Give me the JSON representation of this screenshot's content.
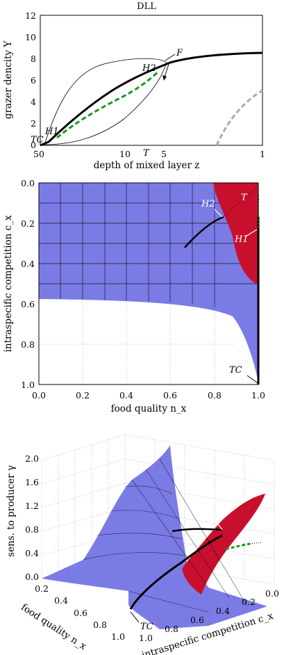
{
  "chart_data": [
    {
      "type": "line",
      "title": "DLL",
      "xlabel": "depth of mixed layer z",
      "ylabel": "grazer dencity Y",
      "xscale": "log-reversed",
      "xlim": [
        50,
        1
      ],
      "ylim": [
        0,
        12
      ],
      "x_ticks": [
        "50",
        "10",
        "5",
        "1"
      ],
      "y_ticks": [
        "0",
        "2",
        "4",
        "6",
        "8",
        "10",
        "12"
      ],
      "annotations": [
        "TC",
        "H1",
        "H2",
        "T",
        "F"
      ],
      "series": [
        {
          "style": "solid-black",
          "x": [
            50,
            45,
            35,
            25,
            15,
            10,
            7,
            5,
            3,
            2,
            1
          ],
          "y": [
            0,
            0.35,
            1.2,
            2.3,
            3.8,
            5.0,
            6.2,
            6.8,
            7.6,
            8.1,
            8.4
          ]
        },
        {
          "style": "dashed-green",
          "x": [
            40,
            30,
            20,
            15,
            12,
            10,
            8
          ],
          "y": [
            0.5,
            1.5,
            2.7,
            3.6,
            4.5,
            5.2,
            6.3
          ]
        },
        {
          "style": "dashed-grey",
          "x": [
            2.2,
            1.8,
            1.4,
            1.0
          ],
          "y": [
            0,
            2.0,
            3.8,
            4.9
          ]
        }
      ]
    },
    {
      "type": "heatmap",
      "xlabel": "food quality n_x",
      "ylabel": "intraspecific competition c_x",
      "xlim": [
        0,
        1
      ],
      "ylim": [
        1,
        0
      ],
      "x_ticks": [
        "0.0",
        "0.2",
        "0.4",
        "0.6",
        "0.8",
        "1.0"
      ],
      "y_ticks": [
        "0.0",
        "0.2",
        "0.4",
        "0.6",
        "0.8",
        "1.0"
      ],
      "regions": [
        {
          "color": "#7b7be6",
          "boundary": [
            [
              0,
              0.57
            ],
            [
              0.3,
              0.58
            ],
            [
              0.6,
              0.6
            ],
            [
              0.8,
              0.64
            ],
            [
              0.9,
              0.7
            ],
            [
              0.96,
              0.8
            ],
            [
              0.99,
              0.9
            ],
            [
              1.0,
              0.97
            ]
          ]
        },
        {
          "color": "#c8102e",
          "boundary": [
            [
              0.8,
              0
            ],
            [
              0.82,
              0.1
            ],
            [
              0.85,
              0.2
            ],
            [
              0.9,
              0.3
            ],
            [
              0.93,
              0.4
            ],
            [
              1.0,
              0.5
            ]
          ]
        }
      ],
      "annotations": [
        "H2",
        "T",
        "H1",
        "TC"
      ]
    },
    {
      "type": "surface",
      "zlabel": "sens. to producer γ",
      "xlabel": "food quality n_x",
      "ylabel": "intraspecific competition c_x",
      "z_ticks": [
        "0.0",
        "0.4",
        "0.8",
        "1.2",
        "1.6",
        "2.0"
      ],
      "x_ticks": [
        "0.2",
        "0.4",
        "0.6",
        "0.8",
        "1.0"
      ],
      "y_ticks": [
        "1.0",
        "0.8",
        "0.6",
        "0.4",
        "0.2",
        "0.0"
      ],
      "annotations": [
        "H2",
        "T",
        "H1",
        "TC"
      ]
    }
  ],
  "colors": {
    "blue": "#7b7be6",
    "red": "#c8102e",
    "green": "#1a9c1a",
    "grey": "#aaaaaa"
  }
}
